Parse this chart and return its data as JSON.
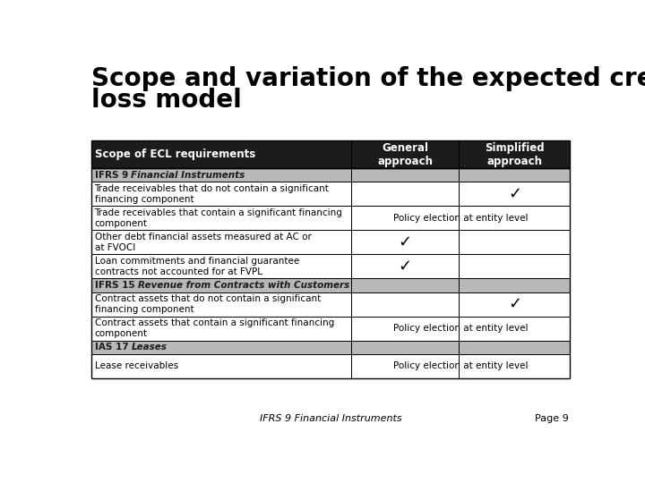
{
  "title_line1": "Scope and variation of the expected credit",
  "title_line2": "loss model",
  "title_fontsize": 20,
  "col_headers": [
    "Scope of ECL requirements",
    "General\napproach",
    "Simplified\napproach"
  ],
  "header_bg": "#1c1c1c",
  "header_fg": "#ffffff",
  "section_bg": "#b8b8b8",
  "section_fg": "#1c1c1c",
  "row_bg": "#ffffff",
  "border_color": "#000000",
  "sections": [
    {
      "normal_prefix": "IFRS 9 ",
      "italic_part": "Financial Instruments",
      "rows": [
        {
          "text": "Trade receivables that do not contain a significant\nfinancing component",
          "general": "",
          "simplified": "✓",
          "span": false
        },
        {
          "text": "Trade receivables that contain a significant financing\ncomponent",
          "general": "Policy election at entity level",
          "simplified": "",
          "span": true
        },
        {
          "text": "Other debt financial assets measured at AC or\nat FVOCI",
          "general": "✓",
          "simplified": "",
          "span": false
        },
        {
          "text": "Loan commitments and financial guarantee\ncontracts not accounted for at FVPL",
          "general": "✓",
          "simplified": "",
          "span": false
        }
      ]
    },
    {
      "normal_prefix": "IFRS 15 ",
      "italic_part": "Revenue from Contracts with Customers",
      "rows": [
        {
          "text": "Contract assets that do not contain a significant\nfinancing component",
          "general": "",
          "simplified": "✓",
          "span": false
        },
        {
          "text": "Contract assets that contain a significant financing\ncomponent",
          "general": "Policy election at entity level",
          "simplified": "",
          "span": true
        }
      ]
    },
    {
      "normal_prefix": "IAS 17 ",
      "italic_part": "Leases",
      "rows": [
        {
          "text": "Lease receivables",
          "general": "Policy election at entity level",
          "simplified": "",
          "span": true
        }
      ]
    }
  ],
  "footer_italic": "IFRS 9 Financial Instruments",
  "page_label": "Page 9",
  "cell_fontsize": 7.5,
  "header_fontsize": 8.5,
  "section_fontsize": 7.5,
  "check_fontsize": 13,
  "policy_fontsize": 7.5
}
